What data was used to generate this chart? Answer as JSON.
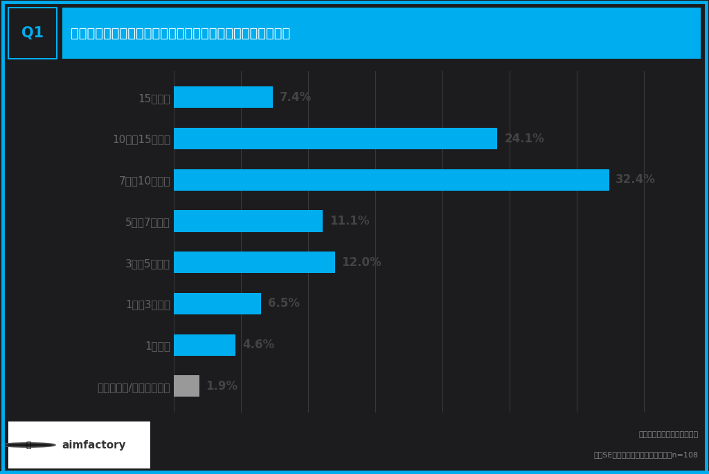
{
  "categories": [
    "15年以上",
    "10年〜15年未満",
    "7年〜10年未満",
    "5年〜7年未満",
    "3年〜5年未満",
    "1年〜3年未満",
    "1年未満",
    "わからない/答えられない"
  ],
  "values": [
    7.4,
    24.1,
    32.4,
    11.1,
    12.0,
    6.5,
    4.6,
    1.9
  ],
  "labels": [
    "7.4%",
    "24.1%",
    "32.4%",
    "11.1%",
    "12.0%",
    "6.5%",
    "4.6%",
    "1.9%"
  ],
  "bar_colors": [
    "#00AEEF",
    "#00AEEF",
    "#00AEEF",
    "#00AEEF",
    "#00AEEF",
    "#00AEEF",
    "#00AEEF",
    "#999999"
  ],
  "fig_bg_color": "#1C1C1E",
  "plot_bg_color": "#1C1C1E",
  "header_bg_color": "#00AEEF",
  "q1_bg_color": "#1C1C1E",
  "header_text": "あなたの、現在のお勤め先の、勤続年数を教えてください。",
  "q_label": "Q1",
  "grid_color": "#3A3A3C",
  "y_label_color": "#666666",
  "bar_label_color": "#444444",
  "footer_text_right1": "アイムファクトリー株式会社",
  "footer_text_right2": "社内SEの働き方に関する実態調査｜n=108",
  "border_color": "#00AEEF",
  "xlim": [
    0,
    38
  ],
  "bar_height": 0.52
}
